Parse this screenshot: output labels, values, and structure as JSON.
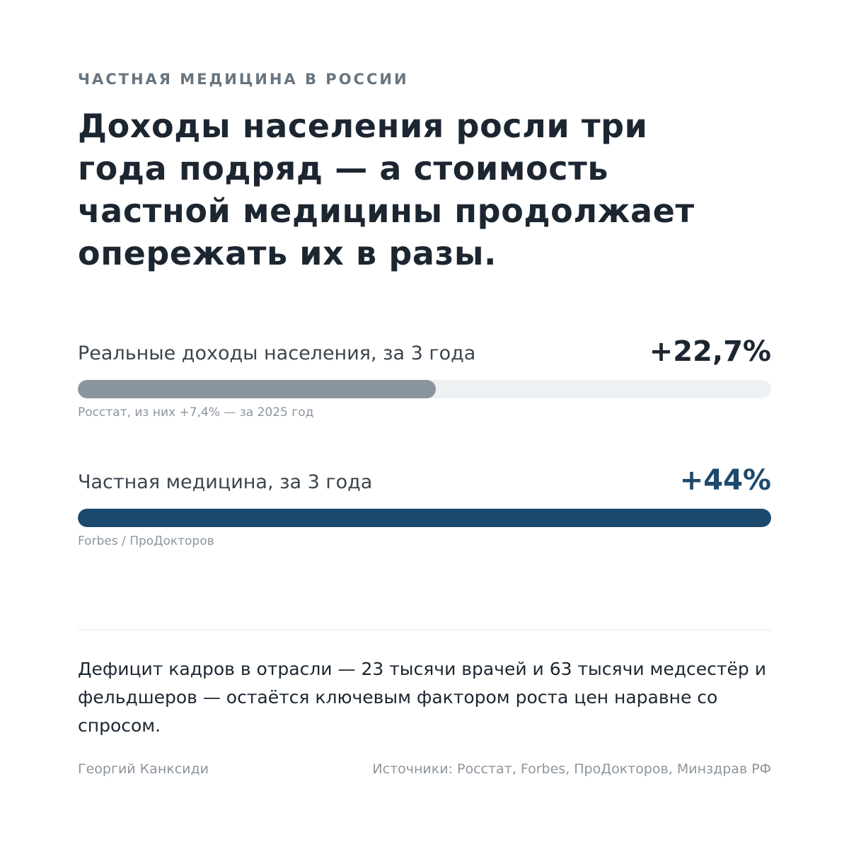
{
  "eyebrow": "ЧАСТНАЯ МЕДИЦИНА В РОССИИ",
  "headline": "Доходы населения росли три года подряд — а стоимость частной медицины продолжает опережать их в разы.",
  "colors": {
    "income_bar": "#8a959f",
    "medicine_bar": "#1c4a6e",
    "income_value": "#1c2631",
    "medicine_value": "#1c4a6e",
    "track": "#eef1f4"
  },
  "chart_data": {
    "type": "bar",
    "orientation": "horizontal",
    "unit": "%",
    "scale_max": 44,
    "bars": [
      {
        "label": "Реальные доходы населения, за 3 года",
        "value": 22.7,
        "value_label": "+22,7%",
        "source": "Росстат, из них +7,4% — за 2025 год"
      },
      {
        "label": "Частная медицина, за 3 года",
        "value": 44,
        "value_label": "+44%",
        "source": "Forbes / ПроДокторов"
      }
    ]
  },
  "note": "Дефицит кадров в отрасли — 23 тысячи врачей и 63 тысячи медсестёр и фельдшеров — остаётся ключевым фактором роста цен наравне со спросом.",
  "footer": {
    "author": "Георгий Канксиди",
    "sources": "Источники: Росстат, Forbes, ПроДокторов, Минздрав РФ"
  }
}
